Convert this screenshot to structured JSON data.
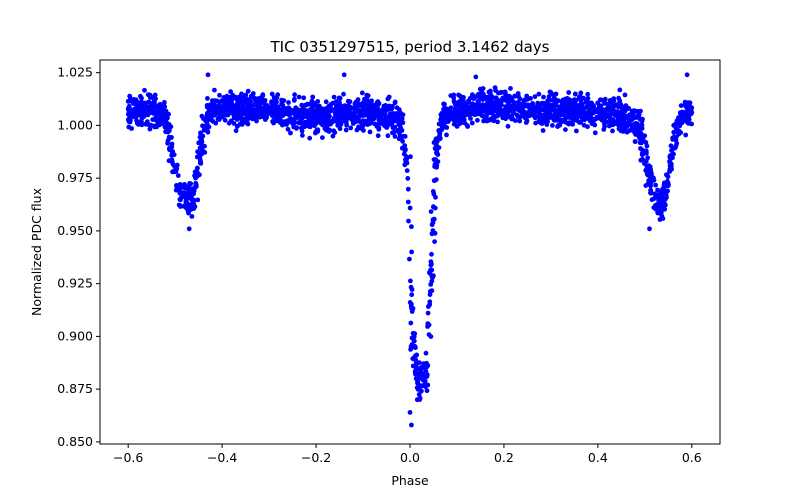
{
  "chart_data": {
    "type": "scatter",
    "title": "TIC 0351297515, period 3.1462 days",
    "xlabel": "Phase",
    "ylabel": "Normalized PDC flux",
    "xlim": [
      -0.66,
      0.66
    ],
    "ylim": [
      0.849,
      1.031
    ],
    "x_ticks": [
      -0.6,
      -0.4,
      -0.2,
      0.0,
      0.2,
      0.4,
      0.6
    ],
    "x_tick_labels": [
      "−0.6",
      "−0.4",
      "−0.2",
      "0.0",
      "0.2",
      "0.4",
      "0.6"
    ],
    "y_ticks": [
      0.85,
      0.875,
      0.9,
      0.925,
      0.95,
      0.975,
      1.0,
      1.025
    ],
    "y_tick_labels": [
      "0.850",
      "0.875",
      "0.900",
      "0.925",
      "0.950",
      "0.975",
      "1.000",
      "1.025"
    ],
    "marker_color": "#0000ff",
    "grid": false,
    "series": [
      {
        "name": "PDC flux",
        "shape_points": [
          {
            "x": -0.6,
            "y": 1.007
          },
          {
            "x": -0.55,
            "y": 1.007
          },
          {
            "x": -0.52,
            "y": 1.004
          },
          {
            "x": -0.505,
            "y": 0.985
          },
          {
            "x": -0.49,
            "y": 0.968
          },
          {
            "x": -0.475,
            "y": 0.962
          },
          {
            "x": -0.46,
            "y": 0.967
          },
          {
            "x": -0.445,
            "y": 0.99
          },
          {
            "x": -0.43,
            "y": 1.005
          },
          {
            "x": -0.4,
            "y": 1.008
          },
          {
            "x": -0.3,
            "y": 1.007
          },
          {
            "x": -0.2,
            "y": 1.004
          },
          {
            "x": -0.1,
            "y": 1.006
          },
          {
            "x": -0.02,
            "y": 1.003
          },
          {
            "x": -0.005,
            "y": 0.98
          },
          {
            "x": 0.005,
            "y": 0.9
          },
          {
            "x": 0.02,
            "y": 0.875
          },
          {
            "x": 0.035,
            "y": 0.883
          },
          {
            "x": 0.045,
            "y": 0.93
          },
          {
            "x": 0.055,
            "y": 0.985
          },
          {
            "x": 0.07,
            "y": 1.004
          },
          {
            "x": 0.15,
            "y": 1.01
          },
          {
            "x": 0.25,
            "y": 1.008
          },
          {
            "x": 0.35,
            "y": 1.007
          },
          {
            "x": 0.45,
            "y": 1.005
          },
          {
            "x": 0.49,
            "y": 1.0
          },
          {
            "x": 0.505,
            "y": 0.98
          },
          {
            "x": 0.52,
            "y": 0.965
          },
          {
            "x": 0.535,
            "y": 0.962
          },
          {
            "x": 0.55,
            "y": 0.975
          },
          {
            "x": 0.56,
            "y": 0.99
          },
          {
            "x": 0.575,
            "y": 1.003
          },
          {
            "x": 0.6,
            "y": 1.007
          }
        ],
        "scatter_halfwidth": 0.0095,
        "extreme_points": [
          {
            "x": -0.47,
            "y": 0.951
          },
          {
            "x": -0.43,
            "y": 1.024
          },
          {
            "x": -0.14,
            "y": 1.024
          },
          {
            "x": 0.003,
            "y": 0.858
          },
          {
            "x": 0.0,
            "y": 0.864
          },
          {
            "x": 0.14,
            "y": 1.023
          },
          {
            "x": 0.51,
            "y": 0.951
          },
          {
            "x": 0.59,
            "y": 1.024
          }
        ]
      }
    ]
  }
}
